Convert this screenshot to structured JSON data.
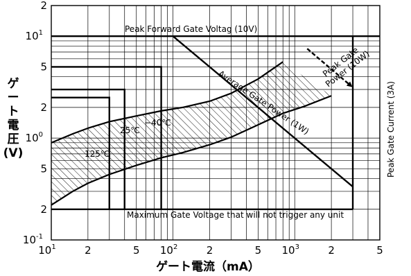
{
  "chart_data": {
    "type": "line",
    "xlabel": "ゲート電流（mA）",
    "ylabel_lines": [
      "ゲ",
      "ー",
      "ト",
      "電",
      "圧",
      "(V)"
    ],
    "x_scale": "log",
    "y_scale": "log",
    "x_range_mA": [
      10,
      5000
    ],
    "y_range_V": [
      0.1,
      20
    ],
    "x_ticks": [
      {
        "value": 10,
        "base": "10",
        "exp": "1"
      },
      {
        "value": 20,
        "base": "2",
        "exp": ""
      },
      {
        "value": 50,
        "base": "5",
        "exp": ""
      },
      {
        "value": 100,
        "base": "10",
        "exp": "2"
      },
      {
        "value": 200,
        "base": "2",
        "exp": ""
      },
      {
        "value": 500,
        "base": "5",
        "exp": ""
      },
      {
        "value": 1000,
        "base": "10",
        "exp": "3"
      },
      {
        "value": 2000,
        "base": "2",
        "exp": ""
      },
      {
        "value": 5000,
        "base": "5",
        "exp": ""
      }
    ],
    "y_ticks": [
      {
        "value": 20,
        "base": "2",
        "exp": ""
      },
      {
        "value": 10,
        "base": "10",
        "exp": "1"
      },
      {
        "value": 5,
        "base": "5",
        "exp": ""
      },
      {
        "value": 2,
        "base": "2",
        "exp": ""
      },
      {
        "value": 1,
        "base": "10",
        "exp": "0"
      },
      {
        "value": 0.5,
        "base": "5",
        "exp": ""
      },
      {
        "value": 0.2,
        "base": "2",
        "exp": ""
      },
      {
        "value": 0.1,
        "base": "10",
        "exp": "-1"
      }
    ],
    "limits": {
      "peak_forward_gate_voltage_V": 10,
      "peak_gate_current_A": 3,
      "max_non_trigger_voltage_V": 0.2
    },
    "annotations": {
      "peak_forward_gate_voltage": "Peak Forward Gate Voltag (10V)",
      "peak_gate_power": [
        "Peak Gate",
        "Power (10W)"
      ],
      "average_gate_power": "Average Gate Power (1W)",
      "peak_gate_current": "Peak Gate Current (3A)",
      "max_gate_voltage": "Maximum Gate  Voltage that will not trigger any unit",
      "temp_minus40": "−40℃",
      "temp_25": "25℃",
      "temp_125": "125℃"
    },
    "trigger_boxes": [
      {
        "name": "−40℃",
        "igt_mA": 80,
        "vgt_V": 5
      },
      {
        "name": "25℃",
        "igt_mA": 40,
        "vgt_V": 3
      },
      {
        "name": "125℃",
        "igt_mA": 30,
        "vgt_V": 2.5
      }
    ],
    "peak_gate_power_line": [
      [
        1000,
        10
      ],
      [
        3000,
        3.33
      ]
    ],
    "average_gate_power_line": [
      [
        100,
        10
      ],
      [
        3000,
        0.333
      ]
    ],
    "upper_curve": [
      [
        10,
        0.9
      ],
      [
        15,
        1.1
      ],
      [
        20,
        1.25
      ],
      [
        30,
        1.45
      ],
      [
        50,
        1.65
      ],
      [
        80,
        1.85
      ],
      [
        120,
        2.0
      ],
      [
        200,
        2.3
      ],
      [
        300,
        2.75
      ],
      [
        500,
        3.8
      ],
      [
        800,
        5.6
      ]
    ],
    "lower_curve": [
      [
        10,
        0.22
      ],
      [
        15,
        0.3
      ],
      [
        20,
        0.36
      ],
      [
        30,
        0.44
      ],
      [
        50,
        0.54
      ],
      [
        80,
        0.64
      ],
      [
        120,
        0.72
      ],
      [
        200,
        0.86
      ],
      [
        300,
        1.02
      ],
      [
        500,
        1.35
      ],
      [
        800,
        1.75
      ],
      [
        1200,
        2.05
      ],
      [
        2000,
        2.6
      ]
    ]
  }
}
